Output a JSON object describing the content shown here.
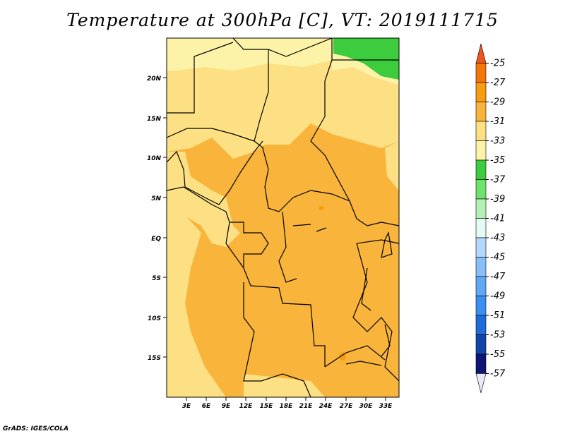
{
  "title": "Temperature at 300hPa [C], VT: 2019111715",
  "credit": "GrADS: IGES/COLA",
  "map": {
    "lat_labels": [
      "20N",
      "15N",
      "10N",
      "5N",
      "EQ",
      "5S",
      "10S",
      "15S"
    ],
    "lon_labels": [
      "3E",
      "6E",
      "9E",
      "12E",
      "15E",
      "18E",
      "21E",
      "24E",
      "27E",
      "30E",
      "33E"
    ],
    "colors": {
      "land_dominant": "#f9b43c",
      "north_region": "#fce083",
      "far_north": "#fdf3a8",
      "cold_patch": "#3dcc3d",
      "borders": "#000000"
    }
  },
  "colorbar": {
    "labels": [
      "-25",
      "-27",
      "-29",
      "-31",
      "-33",
      "-35",
      "-37",
      "-39",
      "-41",
      "-43",
      "-45",
      "-47",
      "-49",
      "-51",
      "-53",
      "-55",
      "-57"
    ],
    "colors": [
      "#f0541d",
      "#f4760b",
      "#f79d12",
      "#f9b43c",
      "#fce083",
      "#fdf3a8",
      "#3dcc3d",
      "#6de26d",
      "#b3f0b3",
      "#e4fbf4",
      "#b3d8fb",
      "#89bff8",
      "#5ea8f5",
      "#3b8fef",
      "#1f6bd7",
      "#1245a9",
      "#0d1576",
      "#e8e8f8"
    ]
  }
}
